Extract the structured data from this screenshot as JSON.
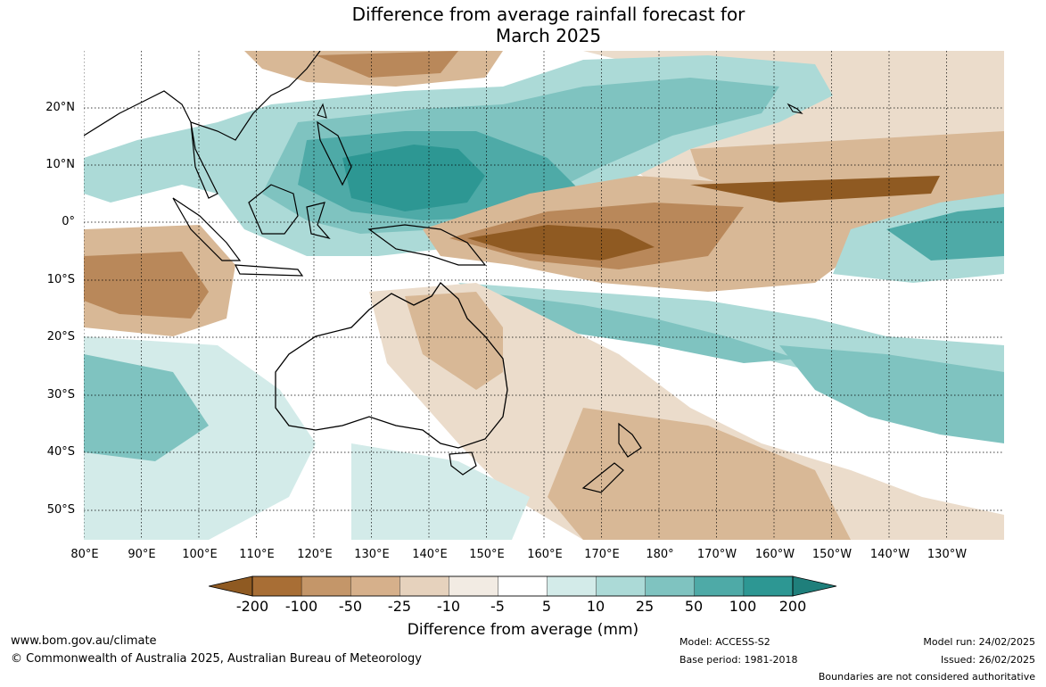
{
  "title": {
    "line1": "Difference from average rainfall forecast for",
    "line2": "March 2025"
  },
  "map": {
    "lat_labels": [
      "20°N",
      "10°N",
      "0°",
      "10°S",
      "20°S",
      "30°S",
      "40°S",
      "50°S"
    ],
    "lon_labels": [
      "80°E",
      "90°E",
      "100°E",
      "110°E",
      "120°E",
      "130°E",
      "140°E",
      "150°E",
      "160°E",
      "170°E",
      "180°",
      "170°W",
      "160°W",
      "150°W",
      "140°W",
      "130°W"
    ],
    "colors": {
      "drier_strong": "#8f5a22",
      "drier_mod": "#b9885a",
      "drier_light": "#d8b896",
      "drier_faint": "#ebdccb",
      "near_avg": "#f4efe8",
      "neutral": "#ffffff",
      "wetter_faint": "#d3ebe9",
      "wetter_light": "#acdad7",
      "wetter_mod": "#7fc3c0",
      "wetter_strong": "#4eaaa7",
      "wetter_very": "#2d9793"
    }
  },
  "colorbar": {
    "ticks": [
      "-200",
      "-100",
      "-50",
      "-25",
      "-10",
      "-5",
      "5",
      "10",
      "25",
      "50",
      "100",
      "200"
    ],
    "segment_colors": [
      "#a86e35",
      "#c49669",
      "#d6b08b",
      "#e6d2bd",
      "#f2ebe3",
      "#ffffff",
      "#d3ebe9",
      "#acdad7",
      "#7fc3c0",
      "#4eaaa7",
      "#2d9793"
    ],
    "low_extend_color": "#8f5a22",
    "high_extend_color": "#1f7f7b",
    "label": "Difference from average (mm)"
  },
  "footer": {
    "website": "www.bom.gov.au/climate",
    "copyright": "© Commonwealth of Australia 2025, Australian Bureau of Meteorology",
    "model": "Model: ACCESS-S2",
    "base_period": "Base period: 1981-2018",
    "model_run": "Model run: 24/02/2025",
    "issued": "Issued: 26/02/2025",
    "disclaimer": "Boundaries are not considered authoritative"
  }
}
